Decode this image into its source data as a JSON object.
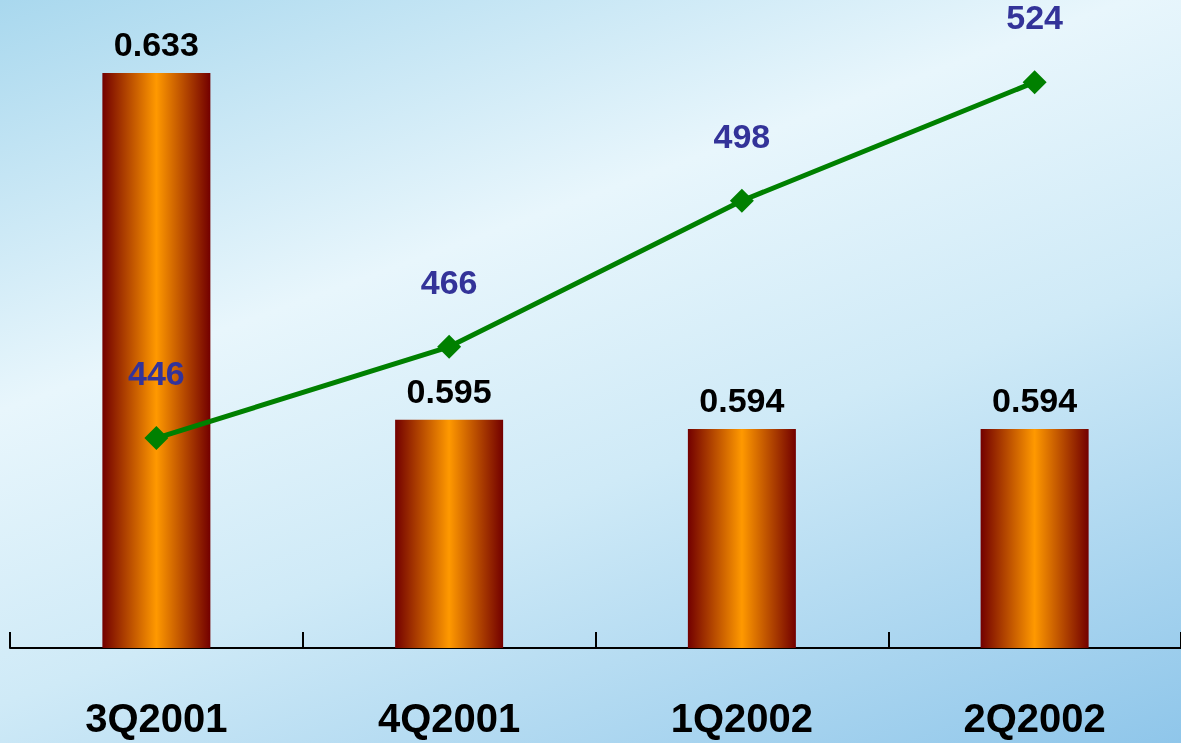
{
  "chart_data": {
    "type": "bar",
    "categories": [
      "3Q2001",
      "4Q2001",
      "1Q2002",
      "2Q2002"
    ],
    "series": [
      {
        "color": "#ff9900",
        "values": [
          0.633,
          0.595,
          0.594,
          0.594
        ]
      },
      {
        "type": "line",
        "axis": "y2",
        "color": "#008000",
        "marker": "diamond",
        "values": [
          446,
          466,
          498,
          524
        ]
      }
    ],
    "ylim": [
      0.57,
      0.641
    ],
    "y2lim": [
      400,
      542
    ],
    "data_labels": true,
    "tick_labels": "x",
    "grid": false
  }
}
